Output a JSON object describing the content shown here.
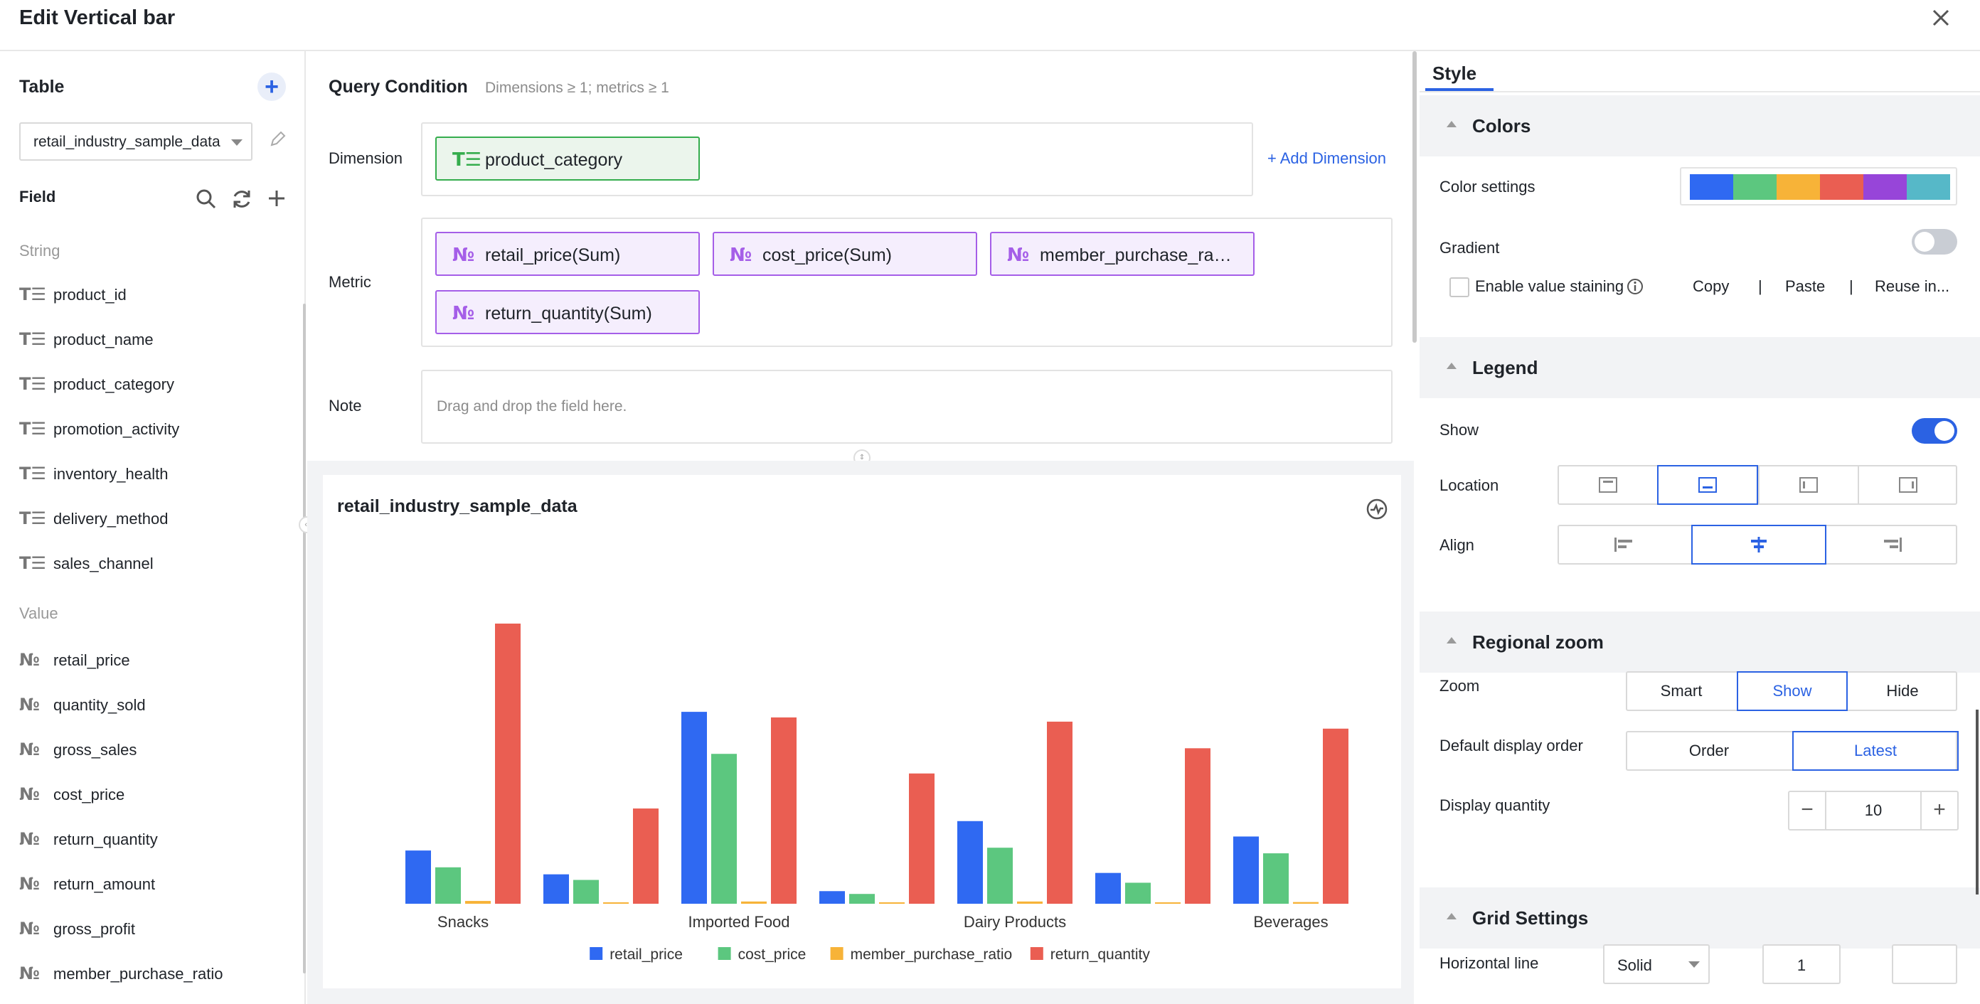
{
  "header": {
    "title": "Edit Vertical bar"
  },
  "left": {
    "table_title": "Table",
    "table_value": "retail_industry_sample_data",
    "field_title": "Field",
    "string_group": "String",
    "value_group": "Value",
    "string_fields": [
      "product_id",
      "product_name",
      "product_category",
      "promotion_activity",
      "inventory_health",
      "delivery_method",
      "sales_channel"
    ],
    "value_fields": [
      "retail_price",
      "quantity_sold",
      "gross_sales",
      "cost_price",
      "return_quantity",
      "return_amount",
      "gross_profit",
      "member_purchase_ratio"
    ],
    "string_icon": "T☰",
    "value_icon": "№"
  },
  "query": {
    "title": "Query Condition",
    "hint": "Dimensions ≥ 1; metrics ≥ 1",
    "dimension_label": "Dimension",
    "metric_label": "Metric",
    "note_label": "Note",
    "dimension_chip": "product_category",
    "metric_chips": [
      "retail_price(Sum)",
      "cost_price(Sum)",
      "member_purchase_ra…",
      "return_quantity(Sum)"
    ],
    "add_dimension": "+ Add Dimension",
    "note_placeholder": "Drag and drop the field here."
  },
  "chart_data": {
    "type": "bar",
    "title": "retail_industry_sample_data",
    "categories": [
      "Snacks",
      "",
      "Imported Food",
      "",
      "Dairy Products",
      "",
      "Beverages"
    ],
    "x_tick_labels": [
      "Snacks",
      "Imported Food",
      "Dairy Products",
      "Beverages"
    ],
    "series": [
      {
        "name": "retail_price",
        "color": "#2f69f2",
        "values": [
          19,
          10.5,
          68.5,
          4.5,
          29.5,
          11,
          24
        ]
      },
      {
        "name": "cost_price",
        "color": "#5cc77f",
        "values": [
          13,
          8.5,
          53.5,
          3.5,
          20,
          7.5,
          18
        ]
      },
      {
        "name": "member_purchase_ratio",
        "color": "#f7b338",
        "values": [
          1,
          0.5,
          0.8,
          0.4,
          0.8,
          0.5,
          0.6
        ]
      },
      {
        "name": "return_quantity",
        "color": "#ea5e52",
        "values": [
          100,
          34,
          66.5,
          46.5,
          65,
          55.5,
          62.5
        ]
      }
    ],
    "ylim": [
      0,
      110
    ],
    "legend_position": "bottom-center",
    "grid": false
  },
  "style": {
    "tab": "Style",
    "colors_section": "Colors",
    "color_settings_label": "Color settings",
    "palette": [
      "#2f69f2",
      "#5cc77f",
      "#f7b338",
      "#ea5e52",
      "#9745d9",
      "#56b8c8"
    ],
    "gradient_label": "Gradient",
    "gradient_on": false,
    "enable_staining_label": "Enable value staining",
    "copy": "Copy",
    "paste": "Paste",
    "reuse": "Reuse in...",
    "legend_section": "Legend",
    "show_label": "Show",
    "show_on": true,
    "location_label": "Location",
    "align_label": "Align",
    "regional_zoom_section": "Regional zoom",
    "zoom_label": "Zoom",
    "zoom_options": [
      "Smart",
      "Show",
      "Hide"
    ],
    "zoom_selected": "Show",
    "order_label": "Default display order",
    "order_options": [
      "Order",
      "Latest"
    ],
    "order_selected": "Latest",
    "display_quantity_label": "Display quantity",
    "display_quantity": "10",
    "grid_section": "Grid Settings",
    "horizontal_line_label": "Horizontal line",
    "line_style": "Solid",
    "line_width": "1",
    "accent": "#2b62e3"
  }
}
